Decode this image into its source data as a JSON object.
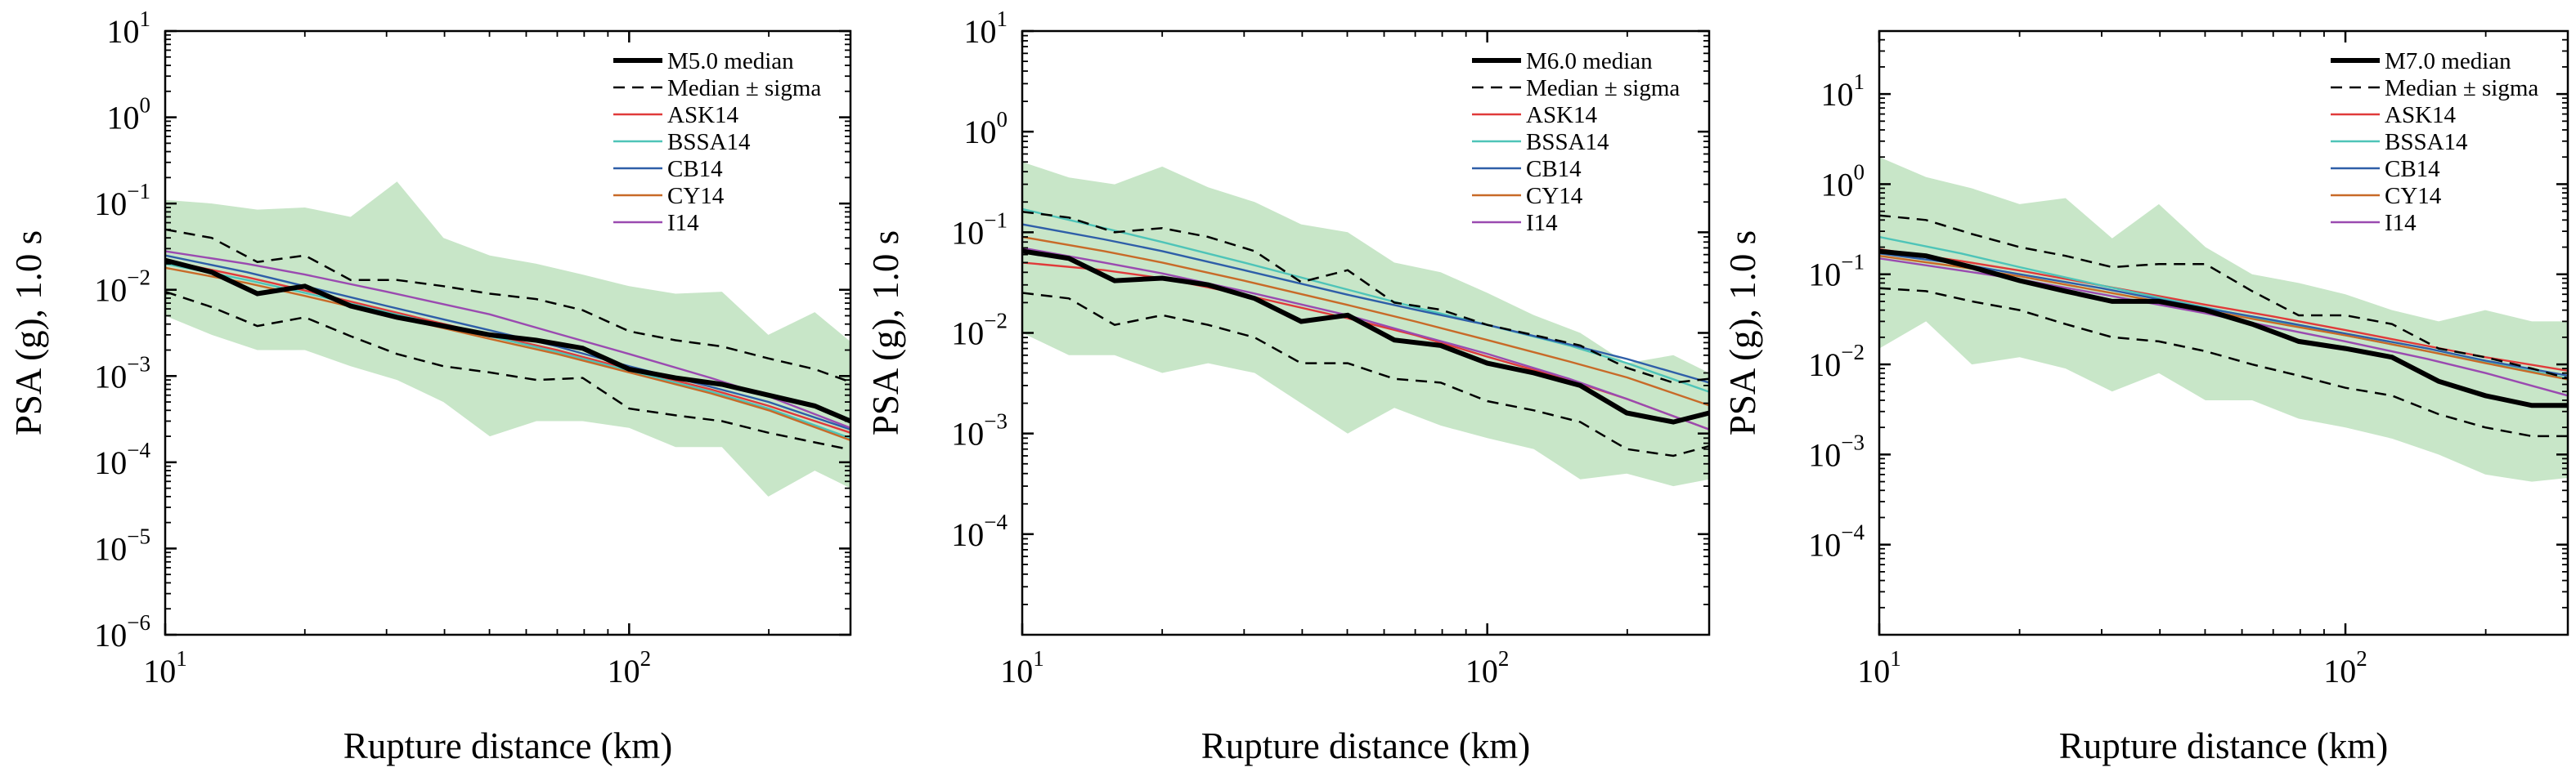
{
  "chart_data": [
    {
      "type": "line",
      "panel": "a",
      "xlabel": "Rupture distance (km)",
      "ylabel": "PSA (g), 1.0 s",
      "xscale": "log",
      "yscale": "log",
      "xlim": [
        10,
        300
      ],
      "ylim": [
        1e-06,
        10
      ],
      "yticks_exp": [
        -6,
        -5,
        -4,
        -3,
        -2,
        -1,
        0,
        1
      ],
      "xticks_exp": [
        1,
        2
      ],
      "legend_position": "top-right",
      "band": {
        "x": [
          10,
          12.6,
          15.8,
          20,
          25.1,
          31.6,
          39.8,
          50.1,
          63.1,
          79.4,
          100,
          125.9,
          158.5,
          199.5,
          251.2,
          300
        ],
        "upper": [
          0.11,
          0.1,
          0.085,
          0.09,
          0.07,
          0.18,
          0.04,
          0.025,
          0.02,
          0.015,
          0.011,
          0.009,
          0.0095,
          0.003,
          0.0055,
          0.0025
        ],
        "lower": [
          0.005,
          0.003,
          0.002,
          0.002,
          0.0013,
          0.0009,
          0.0005,
          0.0002,
          0.0003,
          0.0003,
          0.00025,
          0.00015,
          0.00015,
          4e-05,
          8e-05,
          5e-05
        ]
      },
      "series": [
        {
          "name": "M5.0 median",
          "color": "#000000",
          "style": "thick",
          "x": [
            10,
            12.6,
            15.8,
            20,
            25.1,
            31.6,
            39.8,
            50.1,
            63.1,
            79.4,
            100,
            125.9,
            158.5,
            199.5,
            251.2,
            300
          ],
          "y": [
            0.022,
            0.016,
            0.009,
            0.011,
            0.0065,
            0.0048,
            0.0038,
            0.003,
            0.0026,
            0.0021,
            0.0012,
            0.00095,
            0.0008,
            0.0006,
            0.00045,
            0.0003
          ]
        },
        {
          "name": "Median ± sigma",
          "color": "#000000",
          "style": "dashed",
          "x": [
            10,
            12.6,
            15.8,
            20,
            25.1,
            31.6,
            39.8,
            50.1,
            63.1,
            79.4,
            100,
            125.9,
            158.5,
            199.5,
            251.2,
            300
          ],
          "y": [
            0.05,
            0.04,
            0.021,
            0.025,
            0.013,
            0.013,
            0.011,
            0.009,
            0.0078,
            0.0058,
            0.0033,
            0.0026,
            0.0022,
            0.0016,
            0.0012,
            0.00085
          ]
        },
        {
          "name": "",
          "color": "#000000",
          "style": "dashed",
          "x": [
            10,
            12.6,
            15.8,
            20,
            25.1,
            31.6,
            39.8,
            50.1,
            63.1,
            79.4,
            100,
            125.9,
            158.5,
            199.5,
            251.2,
            300
          ],
          "y": [
            0.0095,
            0.0063,
            0.0038,
            0.0048,
            0.0029,
            0.0018,
            0.0013,
            0.0011,
            0.0009,
            0.00095,
            0.00042,
            0.00035,
            0.0003,
            0.00022,
            0.00017,
            0.00014
          ]
        },
        {
          "name": "ASK14",
          "color": "#e03a3a",
          "style": "thin",
          "x": [
            10,
            15,
            20,
            30,
            50,
            70,
            100,
            150,
            200,
            300
          ],
          "y": [
            0.022,
            0.014,
            0.0098,
            0.0058,
            0.003,
            0.002,
            0.0012,
            0.0007,
            0.00045,
            0.00022
          ]
        },
        {
          "name": "BSSA14",
          "color": "#4ec4b8",
          "style": "thin",
          "x": [
            10,
            15,
            20,
            30,
            50,
            70,
            100,
            150,
            200,
            300
          ],
          "y": [
            0.02,
            0.013,
            0.0092,
            0.0055,
            0.0029,
            0.0019,
            0.00115,
            0.00066,
            0.00042,
            0.00019
          ]
        },
        {
          "name": "CB14",
          "color": "#2e5ea8",
          "style": "thin",
          "x": [
            10,
            15,
            20,
            30,
            50,
            70,
            100,
            150,
            200,
            300
          ],
          "y": [
            0.025,
            0.016,
            0.011,
            0.0065,
            0.0034,
            0.0022,
            0.0013,
            0.00075,
            0.0005,
            0.00024
          ]
        },
        {
          "name": "CY14",
          "color": "#c86a28",
          "style": "thin",
          "x": [
            10,
            15,
            20,
            30,
            50,
            70,
            100,
            150,
            200,
            300
          ],
          "y": [
            0.018,
            0.012,
            0.0085,
            0.0051,
            0.0027,
            0.0018,
            0.0011,
            0.00063,
            0.0004,
            0.00018
          ]
        },
        {
          "name": "I14",
          "color": "#9a4ab0",
          "style": "thin",
          "x": [
            10,
            15,
            20,
            30,
            50,
            70,
            100,
            150,
            200,
            300
          ],
          "y": [
            0.028,
            0.02,
            0.015,
            0.0095,
            0.0052,
            0.0031,
            0.0018,
            0.00095,
            0.00058,
            0.00025
          ]
        }
      ]
    },
    {
      "type": "line",
      "panel": "b",
      "xlabel": "Rupture distance (km)",
      "ylabel": "PSA (g), 1.0 s",
      "xscale": "log",
      "yscale": "log",
      "xlim": [
        10,
        300
      ],
      "ylim": [
        1e-05,
        10
      ],
      "yticks_exp": [
        -4,
        -3,
        -2,
        -1,
        0,
        1
      ],
      "xticks_exp": [
        1,
        2
      ],
      "legend_position": "top-right",
      "band": {
        "x": [
          10,
          12.6,
          15.8,
          20,
          25.1,
          31.6,
          39.8,
          50.1,
          63.1,
          79.4,
          100,
          125.9,
          158.5,
          199.5,
          251.2,
          300
        ],
        "upper": [
          0.5,
          0.35,
          0.3,
          0.45,
          0.28,
          0.2,
          0.12,
          0.1,
          0.05,
          0.04,
          0.025,
          0.015,
          0.01,
          0.005,
          0.006,
          0.004
        ],
        "lower": [
          0.01,
          0.006,
          0.006,
          0.004,
          0.005,
          0.004,
          0.002,
          0.001,
          0.0018,
          0.0012,
          0.0009,
          0.0007,
          0.00035,
          0.0004,
          0.0003,
          0.00035
        ]
      },
      "series": [
        {
          "name": "M6.0 median",
          "color": "#000000",
          "style": "thick",
          "x": [
            10,
            12.6,
            15.8,
            20,
            25.1,
            31.6,
            39.8,
            50.1,
            63.1,
            79.4,
            100,
            125.9,
            158.5,
            199.5,
            251.2,
            300
          ],
          "y": [
            0.065,
            0.055,
            0.033,
            0.035,
            0.03,
            0.022,
            0.013,
            0.015,
            0.0085,
            0.0075,
            0.005,
            0.004,
            0.003,
            0.0016,
            0.0013,
            0.0016
          ]
        },
        {
          "name": "Median ± sigma",
          "color": "#000000",
          "style": "dashed",
          "x": [
            10,
            12.6,
            15.8,
            20,
            25.1,
            31.6,
            39.8,
            50.1,
            63.1,
            79.4,
            100,
            125.9,
            158.5,
            199.5,
            251.2,
            300
          ],
          "y": [
            0.16,
            0.14,
            0.1,
            0.11,
            0.09,
            0.065,
            0.032,
            0.042,
            0.02,
            0.017,
            0.012,
            0.0095,
            0.0075,
            0.0045,
            0.0032,
            0.0035
          ]
        },
        {
          "name": "",
          "color": "#000000",
          "style": "dashed",
          "x": [
            10,
            12.6,
            15.8,
            20,
            25.1,
            31.6,
            39.8,
            50.1,
            63.1,
            79.4,
            100,
            125.9,
            158.5,
            199.5,
            251.2,
            300
          ],
          "y": [
            0.025,
            0.022,
            0.012,
            0.015,
            0.012,
            0.009,
            0.005,
            0.005,
            0.0035,
            0.0032,
            0.0021,
            0.0017,
            0.0013,
            0.0007,
            0.0006,
            0.00075
          ]
        },
        {
          "name": "ASK14",
          "color": "#e03a3a",
          "style": "thin",
          "x": [
            10,
            15,
            20,
            30,
            50,
            70,
            100,
            150,
            200,
            300
          ],
          "y": [
            0.05,
            0.042,
            0.035,
            0.024,
            0.014,
            0.0095,
            0.0058,
            0.0034,
            0.0022,
            0.0011
          ]
        },
        {
          "name": "BSSA14",
          "color": "#4ec4b8",
          "style": "thin",
          "x": [
            10,
            15,
            20,
            30,
            50,
            70,
            100,
            150,
            200,
            300
          ],
          "y": [
            0.17,
            0.11,
            0.08,
            0.05,
            0.027,
            0.018,
            0.012,
            0.0075,
            0.005,
            0.0026
          ]
        },
        {
          "name": "CB14",
          "color": "#2e5ea8",
          "style": "thin",
          "x": [
            10,
            15,
            20,
            30,
            50,
            70,
            100,
            150,
            200,
            300
          ],
          "y": [
            0.12,
            0.085,
            0.065,
            0.042,
            0.024,
            0.017,
            0.012,
            0.0077,
            0.0055,
            0.0032
          ]
        },
        {
          "name": "CY14",
          "color": "#c86a28",
          "style": "thin",
          "x": [
            10,
            15,
            20,
            30,
            50,
            70,
            100,
            150,
            200,
            300
          ],
          "y": [
            0.09,
            0.065,
            0.05,
            0.033,
            0.019,
            0.013,
            0.0085,
            0.0052,
            0.0036,
            0.0019
          ]
        },
        {
          "name": "I14",
          "color": "#9a4ab0",
          "style": "thin",
          "x": [
            10,
            15,
            20,
            30,
            50,
            70,
            100,
            150,
            200,
            300
          ],
          "y": [
            0.07,
            0.05,
            0.039,
            0.026,
            0.015,
            0.0097,
            0.0062,
            0.0035,
            0.0022,
            0.0011
          ]
        }
      ]
    },
    {
      "type": "line",
      "panel": "c",
      "xlabel": "Rupture distance (km)",
      "ylabel": "PSA (g), 1.0 s",
      "xscale": "log",
      "yscale": "log",
      "xlim": [
        10,
        300
      ],
      "ylim": [
        1e-05,
        50
      ],
      "yticks_exp": [
        -4,
        -3,
        -2,
        -1,
        0,
        1
      ],
      "xticks_exp": [
        1,
        2
      ],
      "legend_position": "top-right",
      "band": {
        "x": [
          10,
          12.6,
          15.8,
          20,
          25.1,
          31.6,
          39.8,
          50.1,
          63.1,
          79.4,
          100,
          125.9,
          158.5,
          199.5,
          251.2,
          300
        ],
        "upper": [
          2.0,
          1.2,
          0.9,
          0.6,
          0.7,
          0.25,
          0.6,
          0.2,
          0.1,
          0.08,
          0.06,
          0.04,
          0.03,
          0.04,
          0.03,
          0.03
        ],
        "lower": [
          0.015,
          0.03,
          0.01,
          0.012,
          0.009,
          0.005,
          0.008,
          0.004,
          0.004,
          0.0025,
          0.002,
          0.0015,
          0.001,
          0.0006,
          0.0005,
          0.00055
        ]
      },
      "series": [
        {
          "name": "M7.0 median",
          "color": "#000000",
          "style": "thick",
          "x": [
            10,
            12.6,
            15.8,
            20,
            25.1,
            31.6,
            39.8,
            50.1,
            63.1,
            79.4,
            100,
            125.9,
            158.5,
            199.5,
            251.2,
            300
          ],
          "y": [
            0.18,
            0.16,
            0.12,
            0.085,
            0.065,
            0.05,
            0.05,
            0.04,
            0.028,
            0.018,
            0.015,
            0.012,
            0.0065,
            0.0045,
            0.0035,
            0.0035
          ]
        },
        {
          "name": "Median ± sigma",
          "color": "#000000",
          "style": "dashed",
          "x": [
            10,
            12.6,
            15.8,
            20,
            25.1,
            31.6,
            39.8,
            50.1,
            63.1,
            79.4,
            100,
            125.9,
            158.5,
            199.5,
            251.2,
            300
          ],
          "y": [
            0.45,
            0.4,
            0.28,
            0.2,
            0.16,
            0.12,
            0.13,
            0.13,
            0.065,
            0.035,
            0.035,
            0.028,
            0.015,
            0.012,
            0.009,
            0.007
          ]
        },
        {
          "name": "",
          "color": "#000000",
          "style": "dashed",
          "x": [
            10,
            12.6,
            15.8,
            20,
            25.1,
            31.6,
            39.8,
            50.1,
            63.1,
            79.4,
            100,
            125.9,
            158.5,
            199.5,
            251.2,
            300
          ],
          "y": [
            0.07,
            0.065,
            0.05,
            0.04,
            0.028,
            0.02,
            0.018,
            0.014,
            0.01,
            0.0075,
            0.0055,
            0.0045,
            0.0028,
            0.002,
            0.0016,
            0.0016
          ]
        },
        {
          "name": "ASK14",
          "color": "#e03a3a",
          "style": "thin",
          "x": [
            10,
            15,
            20,
            30,
            50,
            70,
            100,
            150,
            200,
            300
          ],
          "y": [
            0.19,
            0.14,
            0.11,
            0.075,
            0.046,
            0.034,
            0.024,
            0.016,
            0.012,
            0.0085
          ]
        },
        {
          "name": "BSSA14",
          "color": "#4ec4b8",
          "style": "thin",
          "x": [
            10,
            15,
            20,
            30,
            50,
            70,
            100,
            150,
            200,
            300
          ],
          "y": [
            0.26,
            0.17,
            0.12,
            0.075,
            0.043,
            0.03,
            0.021,
            0.014,
            0.0105,
            0.007
          ]
        },
        {
          "name": "CB14",
          "color": "#2e5ea8",
          "style": "thin",
          "x": [
            10,
            15,
            20,
            30,
            50,
            70,
            100,
            150,
            200,
            300
          ],
          "y": [
            0.17,
            0.13,
            0.1,
            0.07,
            0.042,
            0.031,
            0.022,
            0.015,
            0.011,
            0.0075
          ]
        },
        {
          "name": "CY14",
          "color": "#c86a28",
          "style": "thin",
          "x": [
            10,
            15,
            20,
            30,
            50,
            70,
            100,
            150,
            200,
            300
          ],
          "y": [
            0.16,
            0.12,
            0.095,
            0.065,
            0.04,
            0.029,
            0.021,
            0.014,
            0.0103,
            0.0068
          ]
        },
        {
          "name": "I14",
          "color": "#9a4ab0",
          "style": "thin",
          "x": [
            10,
            15,
            20,
            30,
            50,
            70,
            100,
            150,
            200,
            300
          ],
          "y": [
            0.15,
            0.11,
            0.088,
            0.06,
            0.037,
            0.026,
            0.018,
            0.0115,
            0.008,
            0.0045
          ]
        }
      ]
    }
  ],
  "colors": {
    "band_fill": "#c8e6c8",
    "axis": "#000000"
  }
}
